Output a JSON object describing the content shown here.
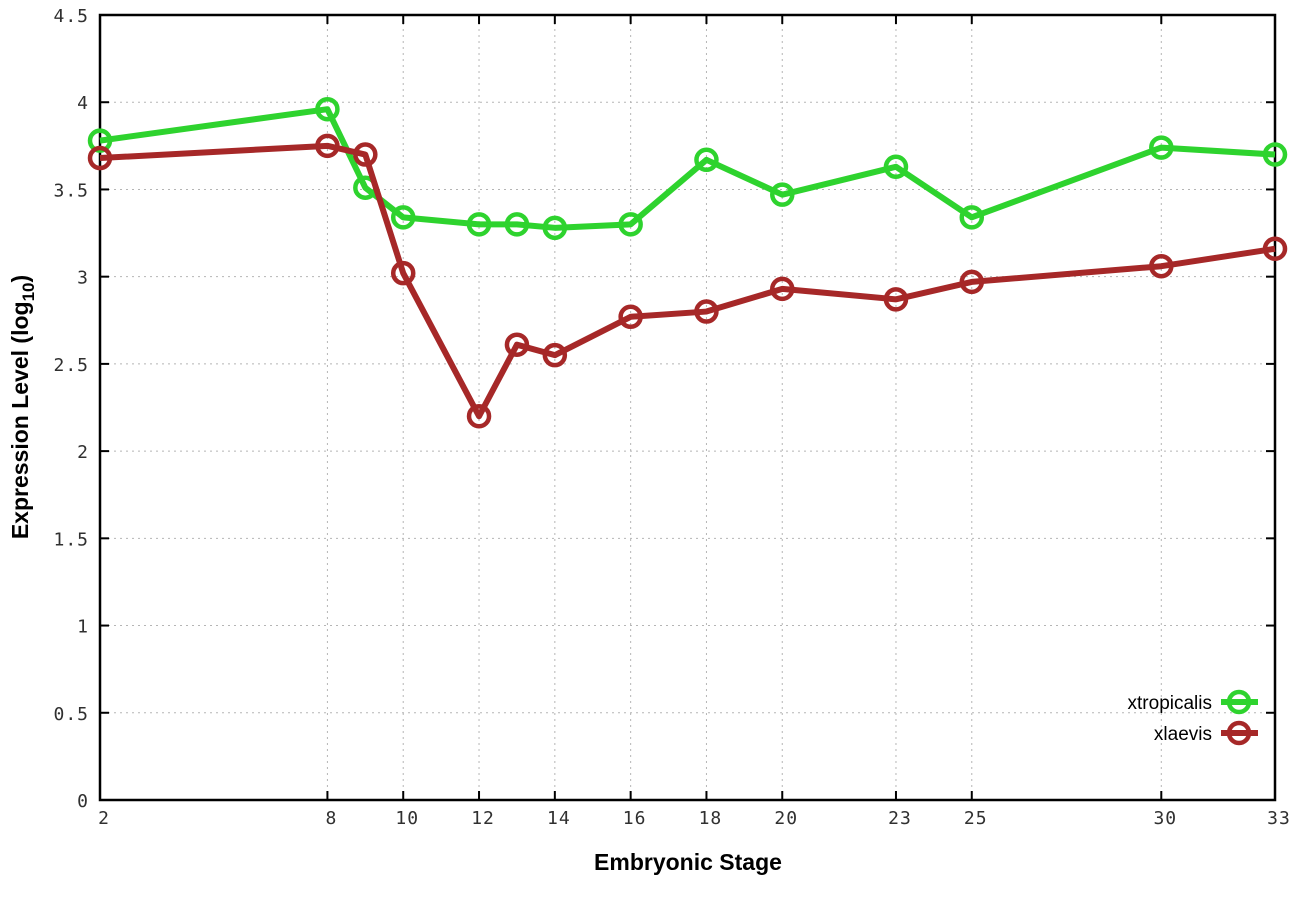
{
  "figure": {
    "background_color": "#ffffff",
    "border_color": "#000000",
    "grid_color": "#b5b5b5",
    "tick_label_color": "#303030",
    "xlabel": "Embryonic Stage",
    "ylabel_prefix": "Expression Level (log",
    "ylabel_sub": "10",
    "ylabel_suffix": ")"
  },
  "chart_data": {
    "type": "line",
    "x": [
      2,
      8,
      9,
      10,
      12,
      13,
      14,
      16,
      18,
      20,
      23,
      25,
      30,
      33
    ],
    "series": [
      {
        "name": "xtropicalis",
        "color": "#2ed32e",
        "marker": "open-circle",
        "values": [
          3.78,
          3.96,
          3.51,
          3.34,
          3.3,
          3.3,
          3.28,
          3.3,
          3.67,
          3.47,
          3.63,
          3.34,
          3.74,
          3.7
        ]
      },
      {
        "name": "xlaevis",
        "color": "#a62828",
        "marker": "open-circle",
        "values": [
          3.68,
          3.75,
          3.7,
          3.02,
          2.2,
          2.61,
          2.55,
          2.77,
          2.8,
          2.93,
          2.87,
          2.97,
          3.06,
          3.16
        ]
      }
    ],
    "title": "",
    "xlabel": "Embryonic Stage",
    "ylabel": "Expression Level (log10)",
    "xlim": [
      2,
      33
    ],
    "ylim": [
      0,
      4.5
    ],
    "xticks": [
      2,
      8,
      10,
      12,
      14,
      16,
      18,
      20,
      23,
      25,
      30,
      33
    ],
    "yticks": [
      0,
      0.5,
      1,
      1.5,
      2,
      2.5,
      3,
      3.5,
      4,
      4.5
    ],
    "grid": true,
    "grid_style": "dotted",
    "legend_position": "inside bottom-right",
    "legend_labels": [
      "xtropicalis",
      "xlaevis"
    ]
  }
}
